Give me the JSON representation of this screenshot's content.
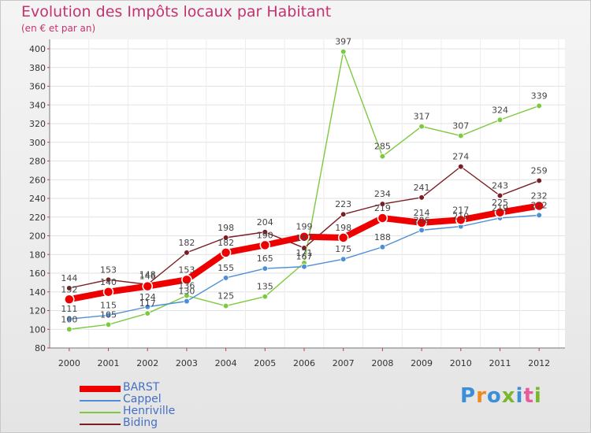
{
  "header": {
    "title": "Evolution des Impôts locaux par Habitant",
    "subtitle": "(en € et par an)"
  },
  "logo": {
    "text": "Proxiti",
    "letter_colors": [
      "#3a8fd6",
      "#f08a1c",
      "#3a8fd6",
      "#7ab82a",
      "#3a8fd6",
      "#e85a9a",
      "#7ab82a"
    ]
  },
  "chart_data": {
    "type": "line",
    "title": "Evolution des Impôts locaux par Habitant",
    "subtitle": "(en € et par an)",
    "xlabel": "",
    "ylabel": "",
    "ylim": [
      80,
      400
    ],
    "y_ticks": [
      80,
      100,
      120,
      140,
      160,
      180,
      200,
      220,
      240,
      260,
      280,
      300,
      320,
      340,
      360,
      380,
      400
    ],
    "grid": true,
    "categories": [
      "2000",
      "2001",
      "2002",
      "2003",
      "2004",
      "2005",
      "2006",
      "2007",
      "2008",
      "2009",
      "2010",
      "2011",
      "2012"
    ],
    "series": [
      {
        "name": "BARST",
        "color": "#ee0000",
        "values": [
          132,
          140,
          146,
          153,
          182,
          190,
          199,
          198,
          219,
          214,
          217,
          225,
          232
        ]
      },
      {
        "name": "Cappel",
        "color": "#4d8fd6",
        "values": [
          111,
          115,
          124,
          130,
          155,
          165,
          167,
          175,
          188,
          206,
          210,
          219,
          222
        ]
      },
      {
        "name": "Henriville",
        "color": "#7dc93f",
        "values": [
          100,
          105,
          117,
          136,
          125,
          135,
          171,
          397,
          285,
          317,
          307,
          324,
          339
        ]
      },
      {
        "name": "Biding",
        "color": "#7a1e24",
        "values": [
          144,
          153,
          148,
          182,
          198,
          204,
          187,
          223,
          234,
          241,
          274,
          243,
          259
        ]
      }
    ],
    "legend_position": "bottom-left"
  }
}
